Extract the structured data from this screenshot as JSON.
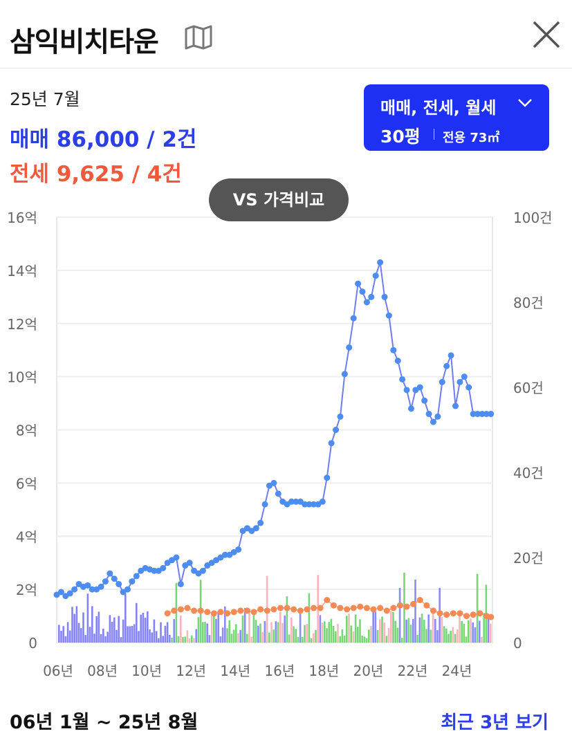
{
  "header": {
    "title": "삼익비치타운",
    "map_icon": "map-icon",
    "close_icon": "close-icon"
  },
  "summary": {
    "period": "25년 7월",
    "sale": "매매 86,000 / 2건",
    "jeonse": "전세 9,625 / 4건"
  },
  "filter": {
    "types": "매매, 전세, 월세",
    "size": "30평",
    "area": "전용 73㎡"
  },
  "compare_button": "VS 가격비교",
  "footer": {
    "range": "06년 1월 ~ 25년 8월",
    "recent_link": "최근 3년 보기"
  },
  "colors": {
    "sale": "#2c3ee6",
    "jeonse": "#ee5a3b",
    "filter_bg": "#1f30f5",
    "sale_line": "#6f7dee",
    "sale_point": "#4d8cf0",
    "jeonse_point": "#f58a55",
    "volume_sale": "#5a5af0",
    "volume_jeonse": "#3ec43e",
    "volume_monthly": "#f09aa0"
  },
  "chart_data": {
    "type": "line",
    "x_ticks": [
      "06년",
      "08년",
      "10년",
      "12년",
      "14년",
      "16년",
      "18년",
      "20년",
      "22년",
      "24년"
    ],
    "y_left_ticks": [
      "0",
      "2억",
      "4억",
      "6억",
      "8억",
      "10억",
      "12억",
      "14억",
      "16억"
    ],
    "y_right_ticks": [
      "0",
      "20건",
      "40건",
      "60건",
      "80건",
      "100건"
    ],
    "ylim_left": [
      0,
      16
    ],
    "ylim_right": [
      0,
      100
    ],
    "xlim": [
      2006.0,
      2025.67
    ],
    "series": [
      {
        "name": "매매",
        "x": [
          2006.0,
          2006.2,
          2006.4,
          2006.6,
          2006.8,
          2007.0,
          2007.2,
          2007.4,
          2007.6,
          2007.8,
          2008.0,
          2008.2,
          2008.4,
          2008.6,
          2008.8,
          2009.0,
          2009.2,
          2009.4,
          2009.6,
          2009.8,
          2010.0,
          2010.2,
          2010.4,
          2010.6,
          2010.8,
          2011.0,
          2011.2,
          2011.4,
          2011.6,
          2011.8,
          2012.0,
          2012.2,
          2012.4,
          2012.6,
          2012.8,
          2013.0,
          2013.2,
          2013.4,
          2013.6,
          2013.8,
          2014.0,
          2014.2,
          2014.4,
          2014.6,
          2014.8,
          2015.0,
          2015.2,
          2015.4,
          2015.6,
          2015.8,
          2016.0,
          2016.2,
          2016.4,
          2016.6,
          2016.8,
          2017.0,
          2017.2,
          2017.4,
          2017.6,
          2017.8,
          2018.0,
          2018.2,
          2018.4,
          2018.6,
          2018.8,
          2019.0,
          2019.2,
          2019.4,
          2019.6,
          2019.8,
          2020.0,
          2020.2,
          2020.4,
          2020.6,
          2020.8,
          2021.0,
          2021.2,
          2021.4,
          2021.6,
          2021.8,
          2022.0,
          2022.2,
          2022.4,
          2022.6,
          2022.8,
          2023.0,
          2023.2,
          2023.4,
          2023.6,
          2023.8,
          2024.0,
          2024.2,
          2024.4,
          2024.6,
          2024.8,
          2025.0,
          2025.2,
          2025.4,
          2025.6
        ],
        "values": [
          1.8,
          1.9,
          1.75,
          1.85,
          2.0,
          2.2,
          2.1,
          2.15,
          2.0,
          2.0,
          2.1,
          2.3,
          2.6,
          2.4,
          2.2,
          1.9,
          2.0,
          2.3,
          2.5,
          2.7,
          2.8,
          2.75,
          2.7,
          2.7,
          2.8,
          3.0,
          3.1,
          3.2,
          2.2,
          2.9,
          3.0,
          2.7,
          2.6,
          2.7,
          2.9,
          3.0,
          3.1,
          3.2,
          3.3,
          3.3,
          3.4,
          3.5,
          4.2,
          4.3,
          4.2,
          4.3,
          4.5,
          5.2,
          5.9,
          6.0,
          5.6,
          5.3,
          5.2,
          5.3,
          5.3,
          5.3,
          5.2,
          5.2,
          5.2,
          5.2,
          5.3,
          6.2,
          7.5,
          8.0,
          8.5,
          10.1,
          11.1,
          12.2,
          13.5,
          13.2,
          12.8,
          13.0,
          13.8,
          14.3,
          13.0,
          12.3,
          11.0,
          10.6,
          9.9,
          9.5,
          8.8,
          9.5,
          9.6,
          9.1,
          8.6,
          8.3,
          8.5,
          9.8,
          10.4,
          10.8,
          8.9,
          9.8,
          10.0,
          9.6,
          8.6,
          8.6,
          8.6,
          8.6,
          8.6
        ]
      },
      {
        "name": "전세",
        "x": [
          2011.0,
          2011.3,
          2011.6,
          2011.9,
          2012.2,
          2012.5,
          2012.8,
          2013.1,
          2013.4,
          2013.7,
          2014.0,
          2014.3,
          2014.6,
          2014.9,
          2015.2,
          2015.5,
          2015.8,
          2016.1,
          2016.4,
          2016.7,
          2017.0,
          2017.3,
          2017.6,
          2017.9,
          2018.2,
          2018.5,
          2018.8,
          2019.1,
          2019.4,
          2019.7,
          2020.0,
          2020.3,
          2020.6,
          2020.9,
          2021.2,
          2021.5,
          2021.8,
          2022.1,
          2022.4,
          2022.7,
          2023.0,
          2023.3,
          2023.6,
          2023.9,
          2024.2,
          2024.5,
          2024.8,
          2025.1,
          2025.4,
          2025.6
        ],
        "values": [
          1.1,
          1.2,
          1.25,
          1.3,
          1.2,
          1.2,
          1.15,
          1.1,
          1.15,
          1.1,
          1.15,
          1.2,
          1.2,
          1.15,
          1.25,
          1.2,
          1.25,
          1.3,
          1.3,
          1.25,
          1.2,
          1.25,
          1.3,
          1.3,
          1.6,
          1.4,
          1.3,
          1.25,
          1.3,
          1.35,
          1.3,
          1.25,
          1.3,
          1.2,
          1.3,
          1.4,
          1.35,
          1.45,
          1.6,
          1.4,
          1.2,
          1.1,
          1.05,
          1.1,
          1.1,
          1.0,
          1.05,
          1.1,
          1.0,
          0.96
        ]
      }
    ]
  }
}
